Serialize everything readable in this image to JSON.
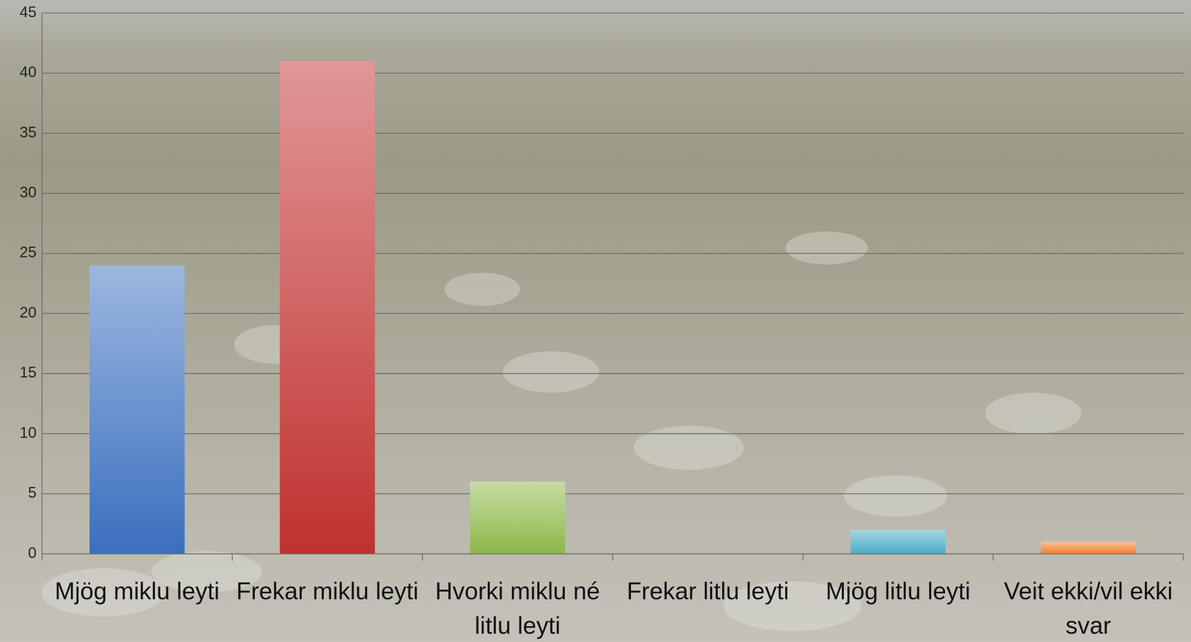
{
  "chart_data": {
    "type": "bar",
    "categories": [
      "Mjög miklu leyti",
      "Frekar miklu leyti",
      "Hvorki miklu né litlu leyti",
      "Frekar litlu leyti",
      "Mjög litlu leyti",
      "Veit ekki/vil ekki svar"
    ],
    "values": [
      24,
      41,
      6,
      0,
      2,
      1
    ],
    "colors": [
      "#3a6fbf",
      "#c0312f",
      "#8cb848",
      "#7e5fa8",
      "#4bacc6",
      "#f07f2f"
    ],
    "ylim": [
      0,
      45
    ],
    "yticks": [
      0,
      5,
      10,
      15,
      20,
      25,
      30,
      35,
      40,
      45
    ],
    "grid": true
  }
}
